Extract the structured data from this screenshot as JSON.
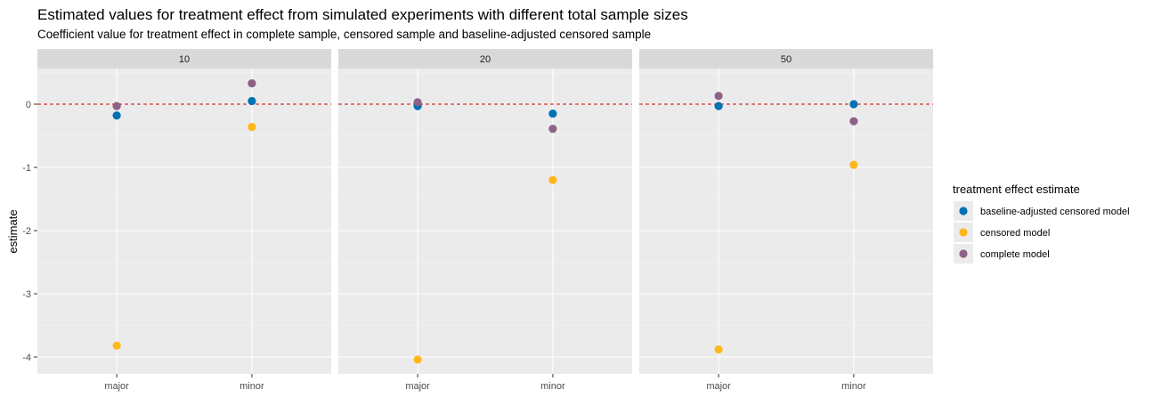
{
  "chart_data": {
    "type": "scatter",
    "title": "Estimated values for treatment effect from simulated experiments with different total sample sizes",
    "subtitle": "Coefficient value for treatment effect in complete sample, censored sample and baseline-adjusted censored sample",
    "ylabel": "estimate",
    "xlabel": "",
    "categories": [
      "major",
      "minor"
    ],
    "yticks": [
      "0",
      "-1",
      "-2",
      "-3",
      "-4"
    ],
    "ylim": [
      -4.22,
      0.48
    ],
    "reference_line": {
      "y": 0,
      "color": "#cc0000",
      "style": "dashed"
    },
    "facets": [
      "10",
      "20",
      "50"
    ],
    "legend": {
      "title": "treatment effect estimate",
      "position": "right"
    },
    "series": [
      {
        "name": "baseline-adjusted censored model",
        "color": "#0072B2",
        "values": [
          [
            -0.18,
            0.05
          ],
          [
            -0.03,
            -0.15
          ],
          [
            -0.03,
            0.0
          ]
        ]
      },
      {
        "name": "censored model",
        "color": "#FFB81C",
        "values": [
          [
            -3.82,
            -0.36
          ],
          [
            -4.04,
            -1.2
          ],
          [
            -3.88,
            -0.96
          ]
        ]
      },
      {
        "name": "complete model",
        "color": "#8E6286",
        "values": [
          [
            -0.03,
            0.33
          ],
          [
            0.03,
            -0.39
          ],
          [
            0.13,
            -0.27
          ]
        ]
      }
    ]
  }
}
